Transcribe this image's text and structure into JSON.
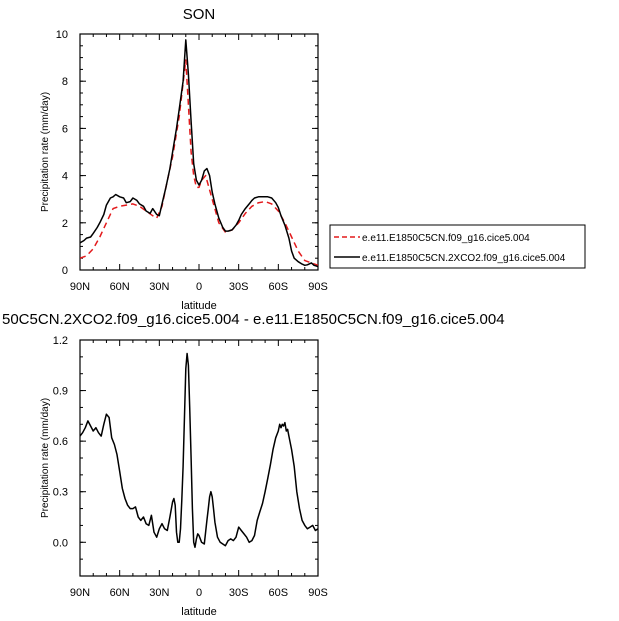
{
  "colors": {
    "control": "#e31a1c",
    "experiment": "#000000"
  },
  "chart_data": [
    {
      "type": "line",
      "title": "SON",
      "xlabel": "latitude",
      "ylabel": "Precipitation rate (mm/day)",
      "xlim": [
        90,
        -90
      ],
      "ylim": [
        0,
        10
      ],
      "xticks": [
        90,
        60,
        30,
        0,
        -30,
        -60,
        -90
      ],
      "xtick_labels": [
        "90N",
        "60N",
        "30N",
        "0",
        "30S",
        "60S",
        "90S"
      ],
      "yticks": [
        0,
        2,
        4,
        6,
        8,
        10
      ],
      "ytick_labels": [
        "0",
        "2",
        "4",
        "6",
        "8",
        "10"
      ],
      "legend": "right",
      "series": [
        {
          "name": "e.e11.E1850C5CN.f09_g16.cice5.004",
          "style": "dashed",
          "x": [
            90,
            85,
            80,
            75,
            70,
            65,
            60,
            55,
            50,
            45,
            40,
            35,
            32,
            28,
            25,
            20,
            15,
            10,
            8,
            6,
            4,
            2,
            0,
            -2,
            -5,
            -10,
            -15,
            -20,
            -25,
            -30,
            -35,
            -40,
            -45,
            -50,
            -55,
            -60,
            -65,
            -70,
            -75,
            -80,
            -85,
            -90
          ],
          "y": [
            0.5,
            0.6,
            0.9,
            1.4,
            2.0,
            2.6,
            2.7,
            2.75,
            2.8,
            2.7,
            2.5,
            2.3,
            2.2,
            2.7,
            3.5,
            4.8,
            6.5,
            8.9,
            7.0,
            5.0,
            4.0,
            3.5,
            3.5,
            3.8,
            4.0,
            3.0,
            2.0,
            1.6,
            1.7,
            2.0,
            2.4,
            2.7,
            2.85,
            2.9,
            2.8,
            2.5,
            2.0,
            1.4,
            0.8,
            0.4,
            0.3,
            0.2
          ]
        },
        {
          "name": "e.e11.E1850C5CN.2XCO2.f09_g16.cice5.004",
          "style": "solid",
          "x": [
            90,
            87,
            85,
            82,
            80,
            77,
            75,
            72,
            70,
            67,
            65,
            63,
            60,
            57,
            55,
            52,
            50,
            47,
            45,
            42,
            40,
            37,
            35,
            32,
            30,
            28,
            25,
            22,
            20,
            17,
            15,
            12,
            10,
            8,
            6,
            4,
            2,
            0,
            -2,
            -4,
            -6,
            -8,
            -10,
            -12,
            -15,
            -18,
            -20,
            -22,
            -25,
            -28,
            -30,
            -32,
            -35,
            -38,
            -40,
            -42,
            -45,
            -48,
            -50,
            -52,
            -55,
            -58,
            -60,
            -62,
            -65,
            -68,
            -70,
            -72,
            -75,
            -78,
            -80,
            -82,
            -85,
            -87,
            -90
          ],
          "y": [
            1.15,
            1.25,
            1.35,
            1.4,
            1.55,
            1.8,
            2.0,
            2.35,
            2.75,
            3.05,
            3.1,
            3.2,
            3.1,
            3.05,
            2.85,
            2.9,
            3.05,
            2.95,
            2.8,
            2.7,
            2.5,
            2.4,
            2.6,
            2.35,
            2.3,
            2.8,
            3.5,
            4.3,
            5.0,
            6.0,
            6.8,
            8.0,
            9.75,
            8.3,
            6.3,
            4.5,
            3.8,
            3.6,
            3.8,
            4.2,
            4.3,
            4.0,
            3.3,
            2.8,
            2.2,
            1.8,
            1.65,
            1.65,
            1.7,
            1.9,
            2.1,
            2.35,
            2.6,
            2.8,
            2.95,
            3.05,
            3.1,
            3.1,
            3.1,
            3.1,
            3.05,
            2.85,
            2.65,
            2.3,
            1.9,
            1.35,
            0.8,
            0.5,
            0.35,
            0.25,
            0.2,
            0.22,
            0.3,
            0.2,
            0.15
          ]
        }
      ]
    },
    {
      "type": "line",
      "title": "50C5CN.2XCO2.f09_g16.cice5.004 - e.e11.E1850C5CN.f09_g16.cice5.004",
      "xlabel": "latitude",
      "ylabel": "Precipitation rate (mm/day)",
      "xlim": [
        90,
        -90
      ],
      "ylim": [
        -0.2,
        1.2
      ],
      "xticks": [
        90,
        60,
        30,
        0,
        -30,
        -60,
        -90
      ],
      "xtick_labels": [
        "90N",
        "60N",
        "30N",
        "0",
        "30S",
        "60S",
        "90S"
      ],
      "yticks": [
        0.0,
        0.3,
        0.6,
        0.9,
        1.2
      ],
      "ytick_labels": [
        "0.0",
        "0.3",
        "0.6",
        "0.9",
        "1.2"
      ],
      "series": [
        {
          "style": "solid",
          "x": [
            90,
            88,
            86,
            84,
            82,
            80,
            78,
            76,
            74,
            72,
            70,
            68,
            66,
            64,
            62,
            60,
            58,
            56,
            54,
            52,
            50,
            48,
            46,
            44,
            42,
            40,
            38,
            36,
            34,
            32,
            30,
            28,
            26,
            24,
            22,
            20,
            19,
            18,
            17,
            16,
            15,
            14,
            13,
            12,
            11,
            10,
            9,
            8,
            7,
            6,
            5,
            4,
            3,
            2,
            1,
            0,
            -2,
            -4,
            -6,
            -7,
            -8,
            -9,
            -10,
            -11,
            -12,
            -14,
            -16,
            -18,
            -20,
            -22,
            -24,
            -26,
            -28,
            -30,
            -32,
            -34,
            -36,
            -38,
            -40,
            -42,
            -44,
            -46,
            -48,
            -50,
            -52,
            -54,
            -56,
            -58,
            -60,
            -61,
            -62,
            -63,
            -64,
            -65,
            -66,
            -67,
            -68,
            -70,
            -72,
            -74,
            -76,
            -78,
            -80,
            -82,
            -84,
            -86,
            -88,
            -90
          ],
          "y": [
            0.63,
            0.65,
            0.68,
            0.72,
            0.69,
            0.66,
            0.68,
            0.65,
            0.63,
            0.7,
            0.76,
            0.74,
            0.62,
            0.58,
            0.52,
            0.42,
            0.32,
            0.26,
            0.22,
            0.2,
            0.2,
            0.21,
            0.15,
            0.13,
            0.15,
            0.11,
            0.1,
            0.16,
            0.06,
            0.03,
            0.08,
            0.11,
            0.08,
            0.07,
            0.15,
            0.24,
            0.26,
            0.22,
            0.06,
            0.0,
            0.0,
            0.08,
            0.25,
            0.45,
            0.75,
            1.03,
            1.12,
            1.05,
            0.8,
            0.5,
            0.2,
            0.0,
            -0.03,
            0.02,
            0.05,
            0.04,
            0.0,
            -0.01,
            0.13,
            0.2,
            0.27,
            0.3,
            0.27,
            0.2,
            0.12,
            0.03,
            0.0,
            -0.01,
            -0.02,
            0.01,
            0.02,
            0.01,
            0.03,
            0.09,
            0.07,
            0.05,
            0.03,
            0.0,
            0.01,
            0.04,
            0.13,
            0.18,
            0.23,
            0.3,
            0.38,
            0.46,
            0.55,
            0.62,
            0.66,
            0.7,
            0.68,
            0.7,
            0.69,
            0.71,
            0.66,
            0.67,
            0.63,
            0.55,
            0.45,
            0.3,
            0.2,
            0.13,
            0.1,
            0.08,
            0.09,
            0.1,
            0.07,
            0.08
          ]
        }
      ]
    }
  ]
}
